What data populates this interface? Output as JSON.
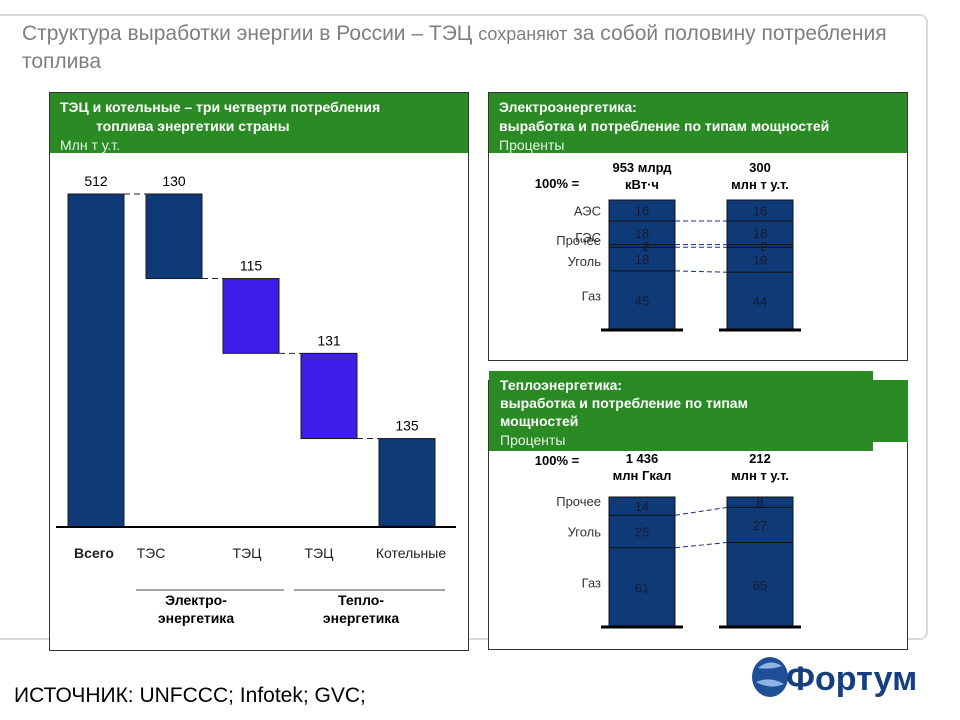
{
  "title": {
    "part1": "Структура выработки энергии в России – ТЭЦ",
    "part2": "сохраняют",
    "part3": "за собой половину потребления топлива"
  },
  "left_panel": {
    "header_line1": "ТЭЦ и котельные – три четверти потребления",
    "header_line2": "топлива энергетики страны",
    "unit": "Млн т у.т.",
    "group_electro": [
      "Электро-",
      "энергетика"
    ],
    "group_heat": [
      "Тепло-",
      "энергетика"
    ]
  },
  "top_right_panel": {
    "header_line1": "Электроэнергетика:",
    "header_line2": "выработка и потребление по типам мощностей",
    "unit": "Проценты"
  },
  "bottom_right_panel": {
    "header_line1": "Теплоэнергетика:",
    "header_line2": "выработка и потребление по типам",
    "header_line3": "мощностей",
    "unit": "Проценты"
  },
  "source": "ИСТОЧНИК: UNFCCC; Infotek; GVC;",
  "logo_text": "Фортум",
  "colors": {
    "green": "#2a8a24",
    "navy": "#0e3a78",
    "violet": "#3d1de8",
    "gray_text": "#7f7f7f"
  },
  "chart_data": [
    {
      "type": "bar",
      "subtype": "waterfall",
      "categories": [
        "Всего",
        "ТЭС",
        "ТЭЦ",
        "ТЭЦ",
        "Котельные"
      ],
      "values": [
        512,
        130,
        115,
        131,
        135
      ],
      "title": "ТЭЦ и котельные – три четверти потребления топлива энергетики страны",
      "ylabel": "Млн т у.т.",
      "ylim": [
        0,
        512
      ],
      "bar_colors": [
        "#0e3a78",
        "#0e3a78",
        "#3d1de8",
        "#3d1de8",
        "#0e3a78"
      ],
      "groups": [
        {
          "label": "Электро- энергетика",
          "categories": [
            "ТЭС",
            "ТЭЦ"
          ]
        },
        {
          "label": "Тепло- энергетика",
          "categories": [
            "ТЭЦ",
            "Котельные"
          ]
        }
      ]
    },
    {
      "type": "bar",
      "subtype": "stacked_100",
      "title": "Электроэнергетика: выработка и потребление по типам мощностей",
      "unit": "Проценты",
      "total_label": "100% =",
      "categories": [
        "953 млрд кВт·ч",
        "300 млн т у.т."
      ],
      "category_lines": [
        [
          "953 млрд",
          "кВт·ч"
        ],
        [
          "300",
          "млн т у.т."
        ]
      ],
      "series": [
        {
          "name": "Газ",
          "values": [
            45,
            44
          ]
        },
        {
          "name": "Уголь",
          "values": [
            18,
            19
          ]
        },
        {
          "name": "Прочее",
          "values": [
            2,
            2
          ]
        },
        {
          "name": "ГЭС",
          "values": [
            18,
            18
          ]
        },
        {
          "name": "АЭС",
          "values": [
            16,
            16
          ]
        }
      ]
    },
    {
      "type": "bar",
      "subtype": "stacked_100",
      "title": "Теплоэнергетика: выработка и потребление по типам мощностей",
      "unit": "Проценты",
      "total_label": "100% =",
      "categories": [
        "1 436 млн Гкал",
        "212 млн т у.т."
      ],
      "category_lines": [
        [
          "1 436",
          "млн Гкал"
        ],
        [
          "212",
          "млн т у.т."
        ]
      ],
      "series": [
        {
          "name": "Газ",
          "values": [
            61,
            65
          ]
        },
        {
          "name": "Уголь",
          "values": [
            25,
            27
          ]
        },
        {
          "name": "Прочее",
          "values": [
            14,
            8
          ]
        }
      ]
    }
  ]
}
